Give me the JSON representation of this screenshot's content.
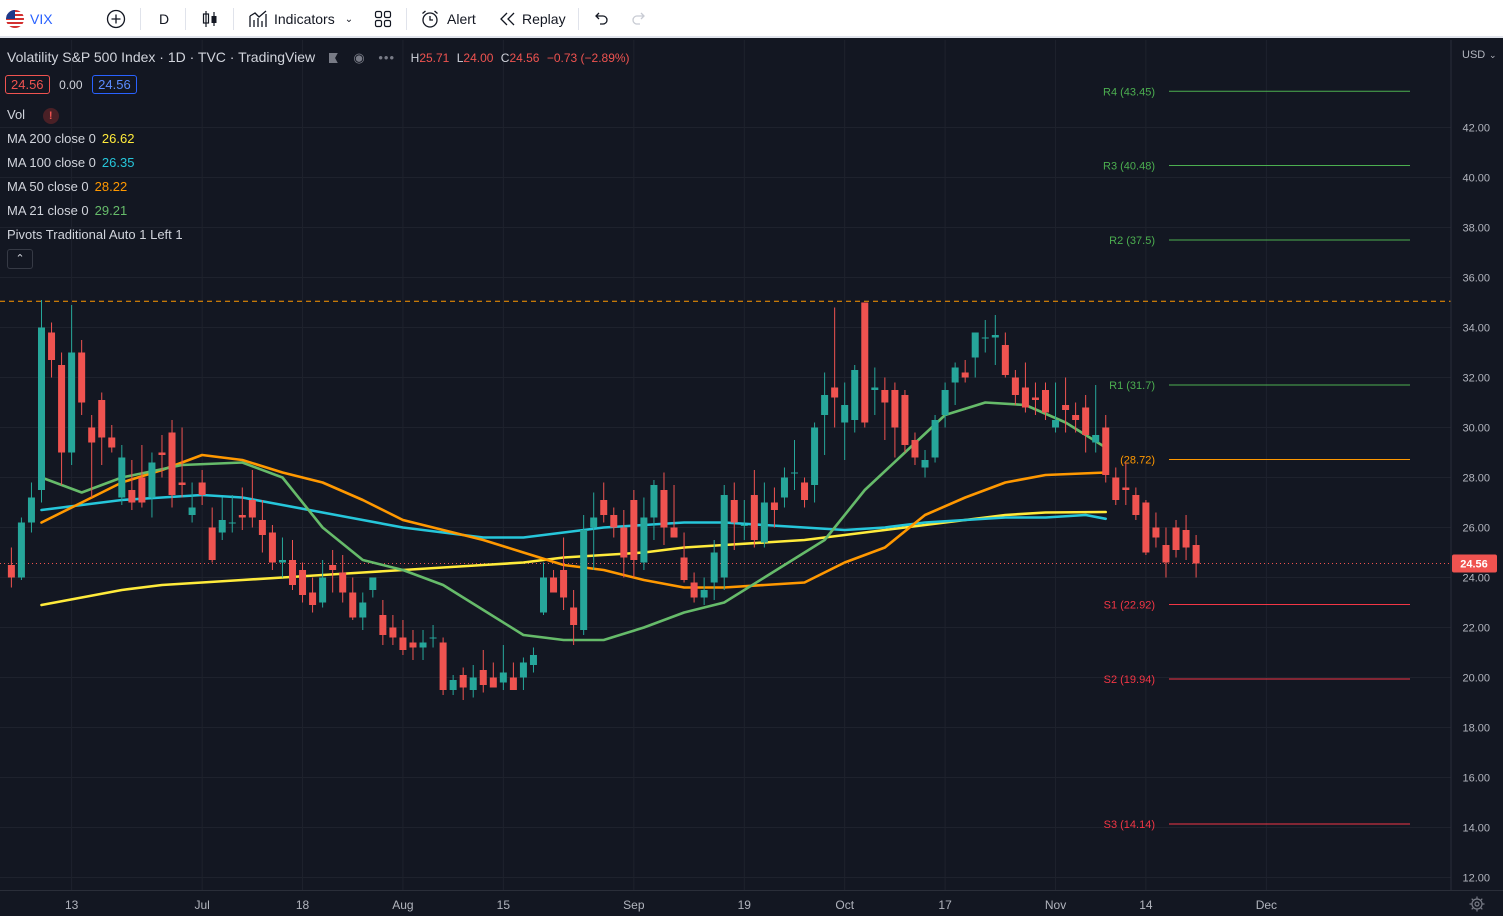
{
  "toolbar": {
    "symbol": "VIX",
    "interval": "D",
    "indicators_label": "Indicators",
    "alert_label": "Alert",
    "replay_label": "Replay"
  },
  "legend": {
    "title": "Volatility S&P 500 Index · 1D · TVC · TradingView",
    "ohlc": {
      "h_label": "H",
      "h": "25.71",
      "l_label": "L",
      "l": "24.00",
      "c_label": "C",
      "c": "24.56",
      "chg": "−0.73 (−2.89%)"
    },
    "sell": "24.56",
    "spread": "0.00",
    "buy": "24.56",
    "vol_label": "Vol",
    "ma": [
      {
        "label": "MA 200 close 0",
        "value": "26.62",
        "color": "#ffeb3b"
      },
      {
        "label": "MA 100 close 0",
        "value": "26.35",
        "color": "#26c6da"
      },
      {
        "label": "MA 50 close 0",
        "value": "28.22",
        "color": "#ff9800"
      },
      {
        "label": "MA 21 close 0",
        "value": "29.21",
        "color": "#66bb6a"
      }
    ],
    "pivots_label": "Pivots Traditional Auto 1 Left 1"
  },
  "colors": {
    "up": "#26a69a",
    "down": "#ef5350",
    "background": "#131722",
    "grid": "#1e222d",
    "pivot_up": "#4caf50",
    "pivot_down": "#f23645",
    "pivot_p": "#ff9800"
  },
  "chart_data": {
    "type": "candlestick",
    "currency": "USD",
    "ylim": [
      11.5,
      45.5
    ],
    "y_ticks": [
      "12.00",
      "14.00",
      "16.00",
      "18.00",
      "20.00",
      "22.00",
      "24.00",
      "26.00",
      "28.00",
      "30.00",
      "32.00",
      "34.00",
      "36.00",
      "38.00",
      "40.00",
      "42.00"
    ],
    "x_ticks": [
      {
        "label": "13",
        "bar": 3
      },
      {
        "label": "Jul",
        "bar": 16
      },
      {
        "label": "18",
        "bar": 26
      },
      {
        "label": "Aug",
        "bar": 36
      },
      {
        "label": "15",
        "bar": 46
      },
      {
        "label": "Sep",
        "bar": 59
      },
      {
        "label": "19",
        "bar": 70
      },
      {
        "label": "Oct",
        "bar": 80
      },
      {
        "label": "17",
        "bar": 90
      },
      {
        "label": "Nov",
        "bar": 101
      },
      {
        "label": "14",
        "bar": 110
      },
      {
        "label": "Dec",
        "bar": 122
      }
    ],
    "last_price": "24.56",
    "high_marker": 35.05,
    "pivots": [
      {
        "label": "R4 (43.45)",
        "value": 43.45,
        "kind": "up"
      },
      {
        "label": "R3 (40.48)",
        "value": 40.48,
        "kind": "up"
      },
      {
        "label": "R2 (37.5)",
        "value": 37.5,
        "kind": "up"
      },
      {
        "label": "R1 (31.7)",
        "value": 31.7,
        "kind": "up"
      },
      {
        "label": "(28.72)",
        "value": 28.72,
        "kind": "p"
      },
      {
        "label": "S1 (22.92)",
        "value": 22.92,
        "kind": "down"
      },
      {
        "label": "S2 (19.94)",
        "value": 19.94,
        "kind": "down"
      },
      {
        "label": "S3 (14.14)",
        "value": 14.14,
        "kind": "down"
      }
    ],
    "candles": [
      [
        24.5,
        25.2,
        23.6,
        24.0
      ],
      [
        24.0,
        26.4,
        23.9,
        26.2
      ],
      [
        26.2,
        27.8,
        25.8,
        27.2
      ],
      [
        27.5,
        35.1,
        27.0,
        34.0
      ],
      [
        33.8,
        34.2,
        32.0,
        32.7
      ],
      [
        32.5,
        33.0,
        27.7,
        29.0
      ],
      [
        29.0,
        34.9,
        28.5,
        33.0
      ],
      [
        33.0,
        33.5,
        30.5,
        31.0
      ],
      [
        30.0,
        30.5,
        27.2,
        29.4
      ],
      [
        31.1,
        31.4,
        28.5,
        29.6
      ],
      [
        29.6,
        30.1,
        29.0,
        29.2
      ],
      [
        27.2,
        29.3,
        26.9,
        28.8
      ],
      [
        27.5,
        28.7,
        26.7,
        27.0
      ],
      [
        28.0,
        29.3,
        26.8,
        27.0
      ],
      [
        27.2,
        29.0,
        26.4,
        28.6
      ],
      [
        29.0,
        29.7,
        28.0,
        28.9
      ],
      [
        29.8,
        30.3,
        26.8,
        27.3
      ],
      [
        27.8,
        30.0,
        27.2,
        27.7
      ],
      [
        26.5,
        27.8,
        26.2,
        26.8
      ],
      [
        27.8,
        28.3,
        26.9,
        27.3
      ],
      [
        26.0,
        26.8,
        24.6,
        24.7
      ],
      [
        25.8,
        27.2,
        25.5,
        26.3
      ],
      [
        26.2,
        27.3,
        25.8,
        26.2
      ],
      [
        26.5,
        27.6,
        25.9,
        26.4
      ],
      [
        27.1,
        28.3,
        26.0,
        26.4
      ],
      [
        26.3,
        27.1,
        25.0,
        25.7
      ],
      [
        25.8,
        26.1,
        24.3,
        24.6
      ],
      [
        24.6,
        25.6,
        24.0,
        24.7
      ],
      [
        24.7,
        25.5,
        23.5,
        23.7
      ],
      [
        24.3,
        24.6,
        23.0,
        23.3
      ],
      [
        23.4,
        24.0,
        22.6,
        22.9
      ],
      [
        23.0,
        24.7,
        22.8,
        24.0
      ],
      [
        24.5,
        25.1,
        23.4,
        24.3
      ],
      [
        24.2,
        24.9,
        23.0,
        23.4
      ],
      [
        23.4,
        24.0,
        22.3,
        22.4
      ],
      [
        22.4,
        23.4,
        21.9,
        23.0
      ],
      [
        23.5,
        24.0,
        23.2,
        24.0
      ],
      [
        22.5,
        23.1,
        21.3,
        21.7
      ],
      [
        22.0,
        22.5,
        21.3,
        21.6
      ],
      [
        21.6,
        22.3,
        20.9,
        21.1
      ],
      [
        21.4,
        21.9,
        20.7,
        21.2
      ],
      [
        21.2,
        21.9,
        20.7,
        21.4
      ],
      [
        21.6,
        22.1,
        21.2,
        21.6
      ],
      [
        21.4,
        21.6,
        19.3,
        19.5
      ],
      [
        19.5,
        20.1,
        19.3,
        19.9
      ],
      [
        20.1,
        20.4,
        19.1,
        19.6
      ],
      [
        19.5,
        20.5,
        19.2,
        20.0
      ],
      [
        20.3,
        21.1,
        19.4,
        19.7
      ],
      [
        20.0,
        20.6,
        19.6,
        19.6
      ],
      [
        19.8,
        21.3,
        19.5,
        20.2
      ],
      [
        20.0,
        20.6,
        19.5,
        19.5
      ],
      [
        20.0,
        20.8,
        19.5,
        20.6
      ],
      [
        20.5,
        21.2,
        20.2,
        20.9
      ],
      [
        22.6,
        24.6,
        22.5,
        24.0
      ],
      [
        24.0,
        24.3,
        23.4,
        23.4
      ],
      [
        24.3,
        25.6,
        22.7,
        23.2
      ],
      [
        22.8,
        23.5,
        21.3,
        22.1
      ],
      [
        21.9,
        26.5,
        21.7,
        25.9
      ],
      [
        26.0,
        27.4,
        24.3,
        26.4
      ],
      [
        27.1,
        27.8,
        26.2,
        26.5
      ],
      [
        26.5,
        26.8,
        25.6,
        26.0
      ],
      [
        26.0,
        26.7,
        24.0,
        24.8
      ],
      [
        27.1,
        27.5,
        24.0,
        24.7
      ],
      [
        24.6,
        27.2,
        24.3,
        26.4
      ],
      [
        26.4,
        27.9,
        25.5,
        27.7
      ],
      [
        27.5,
        28.2,
        25.3,
        26.0
      ],
      [
        26.0,
        27.7,
        25.6,
        25.6
      ],
      [
        24.8,
        25.8,
        23.8,
        23.9
      ],
      [
        23.8,
        24.2,
        23.0,
        23.2
      ],
      [
        23.2,
        24.0,
        22.9,
        23.5
      ],
      [
        23.8,
        25.5,
        23.1,
        25.0
      ],
      [
        24.0,
        27.7,
        23.5,
        27.3
      ],
      [
        27.1,
        27.8,
        25.1,
        26.2
      ],
      [
        26.1,
        27.1,
        25.5,
        26.1
      ],
      [
        27.3,
        28.3,
        25.2,
        25.5
      ],
      [
        25.4,
        27.8,
        25.2,
        27.0
      ],
      [
        27.0,
        27.6,
        26.0,
        26.7
      ],
      [
        27.2,
        28.4,
        26.8,
        28.0
      ],
      [
        28.2,
        29.5,
        27.5,
        28.2
      ],
      [
        27.8,
        28.0,
        26.8,
        27.1
      ],
      [
        27.7,
        30.2,
        27.0,
        30.0
      ],
      [
        30.5,
        32.2,
        28.9,
        31.3
      ],
      [
        31.6,
        34.8,
        30.0,
        31.2
      ],
      [
        30.2,
        31.8,
        28.7,
        30.9
      ],
      [
        30.3,
        32.5,
        29.8,
        32.3
      ],
      [
        35.0,
        35.0,
        30.0,
        30.2
      ],
      [
        31.5,
        32.4,
        30.5,
        31.6
      ],
      [
        31.5,
        32.0,
        29.5,
        31.0
      ],
      [
        31.5,
        31.8,
        28.8,
        30.0
      ],
      [
        31.3,
        31.5,
        29.0,
        29.3
      ],
      [
        29.5,
        29.8,
        28.5,
        28.8
      ],
      [
        28.4,
        29.1,
        28.0,
        28.7
      ],
      [
        28.8,
        30.5,
        28.6,
        30.3
      ],
      [
        30.5,
        31.8,
        30.0,
        31.5
      ],
      [
        31.8,
        32.6,
        30.9,
        32.4
      ],
      [
        32.2,
        32.7,
        31.8,
        32.0
      ],
      [
        32.8,
        33.8,
        32.0,
        33.8
      ],
      [
        33.6,
        34.3,
        33.0,
        33.6
      ],
      [
        33.6,
        34.5,
        32.5,
        33.7
      ],
      [
        33.3,
        33.8,
        32.0,
        32.1
      ],
      [
        32.0,
        32.3,
        30.9,
        31.3
      ],
      [
        31.6,
        32.6,
        30.6,
        30.8
      ],
      [
        31.2,
        31.8,
        30.5,
        31.1
      ],
      [
        31.5,
        31.8,
        30.3,
        30.6
      ],
      [
        30.0,
        31.8,
        29.8,
        30.3
      ],
      [
        30.9,
        32.0,
        29.8,
        30.7
      ],
      [
        30.5,
        31.0,
        29.8,
        30.3
      ],
      [
        30.8,
        31.3,
        29.0,
        29.7
      ],
      [
        29.4,
        31.7,
        29.0,
        29.7
      ],
      [
        30.0,
        30.5,
        27.8,
        28.1
      ],
      [
        28.0,
        28.4,
        26.9,
        27.1
      ],
      [
        27.6,
        28.6,
        26.9,
        27.5
      ],
      [
        27.3,
        27.6,
        26.3,
        26.5
      ],
      [
        27.0,
        27.1,
        24.9,
        25.0
      ],
      [
        26.0,
        26.6,
        25.2,
        25.6
      ],
      [
        25.3,
        26.0,
        24.0,
        24.6
      ],
      [
        26.0,
        26.3,
        24.8,
        25.1
      ],
      [
        25.9,
        26.5,
        24.7,
        25.2
      ],
      [
        25.3,
        25.7,
        24.0,
        24.56
      ]
    ],
    "candle_note": "Each candle is [open, high, low, close], daily, estimated from the chart.",
    "series": [
      {
        "name": "MA 21 close 0",
        "color": "#66bb6a",
        "points": [
          [
            0,
            28.0
          ],
          [
            4,
            27.4
          ],
          [
            8,
            28.0
          ],
          [
            14,
            28.5
          ],
          [
            20,
            28.6
          ],
          [
            24,
            28.0
          ],
          [
            28,
            26.0
          ],
          [
            32,
            24.7
          ],
          [
            36,
            24.3
          ],
          [
            40,
            23.7
          ],
          [
            44,
            22.7
          ],
          [
            48,
            21.7
          ],
          [
            52,
            21.5
          ],
          [
            56,
            21.5
          ],
          [
            60,
            22.0
          ],
          [
            64,
            22.6
          ],
          [
            68,
            23.0
          ],
          [
            72,
            24.0
          ],
          [
            78,
            25.5
          ],
          [
            82,
            27.5
          ],
          [
            86,
            29.0
          ],
          [
            90,
            30.5
          ],
          [
            94,
            31.0
          ],
          [
            98,
            30.9
          ],
          [
            102,
            30.2
          ],
          [
            106,
            29.2
          ]
        ]
      },
      {
        "name": "MA 50 close 0",
        "color": "#ff9800",
        "points": [
          [
            0,
            26.2
          ],
          [
            4,
            27.0
          ],
          [
            8,
            27.8
          ],
          [
            12,
            28.3
          ],
          [
            16,
            28.9
          ],
          [
            20,
            28.7
          ],
          [
            24,
            28.2
          ],
          [
            28,
            27.8
          ],
          [
            32,
            27.1
          ],
          [
            36,
            26.3
          ],
          [
            40,
            25.9
          ],
          [
            44,
            25.5
          ],
          [
            48,
            25.0
          ],
          [
            52,
            24.5
          ],
          [
            56,
            24.3
          ],
          [
            60,
            23.9
          ],
          [
            64,
            23.6
          ],
          [
            68,
            23.6
          ],
          [
            72,
            23.7
          ],
          [
            76,
            23.8
          ],
          [
            80,
            24.6
          ],
          [
            84,
            25.2
          ],
          [
            88,
            26.5
          ],
          [
            92,
            27.2
          ],
          [
            96,
            27.8
          ],
          [
            100,
            28.1
          ],
          [
            106,
            28.2
          ]
        ]
      },
      {
        "name": "MA 100 close 0",
        "color": "#26c6da",
        "points": [
          [
            0,
            26.7
          ],
          [
            4,
            26.9
          ],
          [
            8,
            27.1
          ],
          [
            12,
            27.2
          ],
          [
            16,
            27.3
          ],
          [
            20,
            27.2
          ],
          [
            24,
            26.9
          ],
          [
            28,
            26.6
          ],
          [
            32,
            26.3
          ],
          [
            36,
            26.0
          ],
          [
            40,
            25.8
          ],
          [
            44,
            25.6
          ],
          [
            48,
            25.6
          ],
          [
            52,
            25.8
          ],
          [
            56,
            26.0
          ],
          [
            60,
            26.1
          ],
          [
            64,
            26.2
          ],
          [
            68,
            26.2
          ],
          [
            72,
            26.1
          ],
          [
            76,
            26.0
          ],
          [
            80,
            25.9
          ],
          [
            84,
            26.0
          ],
          [
            88,
            26.2
          ],
          [
            92,
            26.3
          ],
          [
            96,
            26.4
          ],
          [
            100,
            26.4
          ],
          [
            104,
            26.5
          ],
          [
            106,
            26.35
          ]
        ]
      },
      {
        "name": "MA 200 close 0",
        "color": "#ffeb3b",
        "points": [
          [
            0,
            22.9
          ],
          [
            4,
            23.2
          ],
          [
            8,
            23.5
          ],
          [
            12,
            23.7
          ],
          [
            16,
            23.8
          ],
          [
            20,
            23.9
          ],
          [
            24,
            24.0
          ],
          [
            28,
            24.1
          ],
          [
            32,
            24.2
          ],
          [
            36,
            24.3
          ],
          [
            40,
            24.4
          ],
          [
            44,
            24.5
          ],
          [
            48,
            24.6
          ],
          [
            52,
            24.8
          ],
          [
            56,
            24.9
          ],
          [
            60,
            25.0
          ],
          [
            64,
            25.2
          ],
          [
            68,
            25.3
          ],
          [
            72,
            25.4
          ],
          [
            76,
            25.5
          ],
          [
            80,
            25.7
          ],
          [
            84,
            25.9
          ],
          [
            88,
            26.1
          ],
          [
            92,
            26.3
          ],
          [
            96,
            26.5
          ],
          [
            100,
            26.6
          ],
          [
            106,
            26.62
          ]
        ]
      }
    ]
  }
}
